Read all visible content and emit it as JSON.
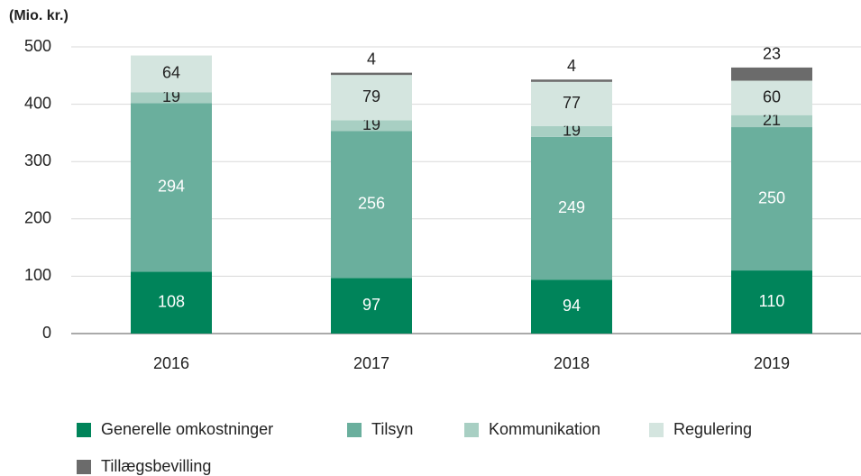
{
  "chart_data": {
    "type": "stacked_bar",
    "y_axis_label": "(Mio. kr.)",
    "categories": [
      "2016",
      "2017",
      "2018",
      "2019"
    ],
    "series": [
      {
        "name": "Generelle omkostninger",
        "color": "#00845a",
        "label_color": "#ffffff",
        "values": [
          108,
          97,
          94,
          110
        ]
      },
      {
        "name": "Tilsyn",
        "color": "#6aaf9d",
        "label_color": "#ffffff",
        "values": [
          294,
          256,
          249,
          250
        ]
      },
      {
        "name": "Kommunikation",
        "color": "#a8cfc3",
        "label_color": "#222222",
        "values": [
          19,
          19,
          19,
          21
        ]
      },
      {
        "name": "Regulering",
        "color": "#d4e5df",
        "label_color": "#222222",
        "values": [
          64,
          79,
          77,
          60
        ]
      },
      {
        "name": "Tillægsbevilling",
        "color": "#6b6b6b",
        "label_color": "#222222",
        "label_position": "above",
        "values": [
          null,
          4,
          4,
          23
        ]
      }
    ],
    "ylim": [
      0,
      500
    ],
    "yticks": [
      0,
      100,
      200,
      300,
      400,
      500
    ],
    "grid": true
  }
}
